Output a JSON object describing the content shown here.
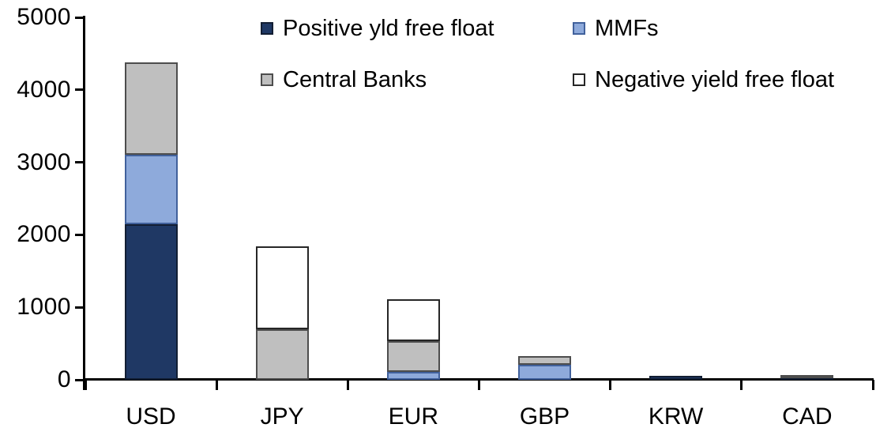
{
  "chart_data": {
    "type": "bar",
    "stacked": true,
    "title": "",
    "xlabel": "",
    "ylabel": "",
    "categories": [
      "USD",
      "JPY",
      "EUR",
      "GBP",
      "KRW",
      "CAD"
    ],
    "series": [
      {
        "name": "Positive yld free float",
        "color": "#1F3864",
        "border": "#121E33",
        "values": [
          2150,
          0,
          0,
          0,
          50,
          40
        ]
      },
      {
        "name": "MMFs",
        "color": "#8EAADB",
        "border": "#41619C",
        "values": [
          950,
          0,
          110,
          210,
          0,
          0
        ]
      },
      {
        "name": "Central Banks",
        "color": "#BFBFBF",
        "border": "#4D4D4D",
        "values": [
          1280,
          700,
          425,
          120,
          0,
          30
        ]
      },
      {
        "name": "Negative yield free float",
        "color": "#FFFFFF",
        "border": "#262626",
        "values": [
          0,
          1140,
          575,
          0,
          0,
          0
        ]
      }
    ],
    "totals": [
      4380,
      1840,
      1110,
      330,
      50,
      70
    ],
    "ylim": [
      0,
      5000
    ],
    "yticks": [
      0,
      1000,
      2000,
      3000,
      4000,
      5000
    ],
    "ytick_labels": [
      "0",
      "1000",
      "2000",
      "3000",
      "4000",
      "5000"
    ],
    "grid": false,
    "legend_position": "top",
    "legend_columns": 2,
    "axis_color": "#000000",
    "background_color": "#FFFFFF"
  }
}
